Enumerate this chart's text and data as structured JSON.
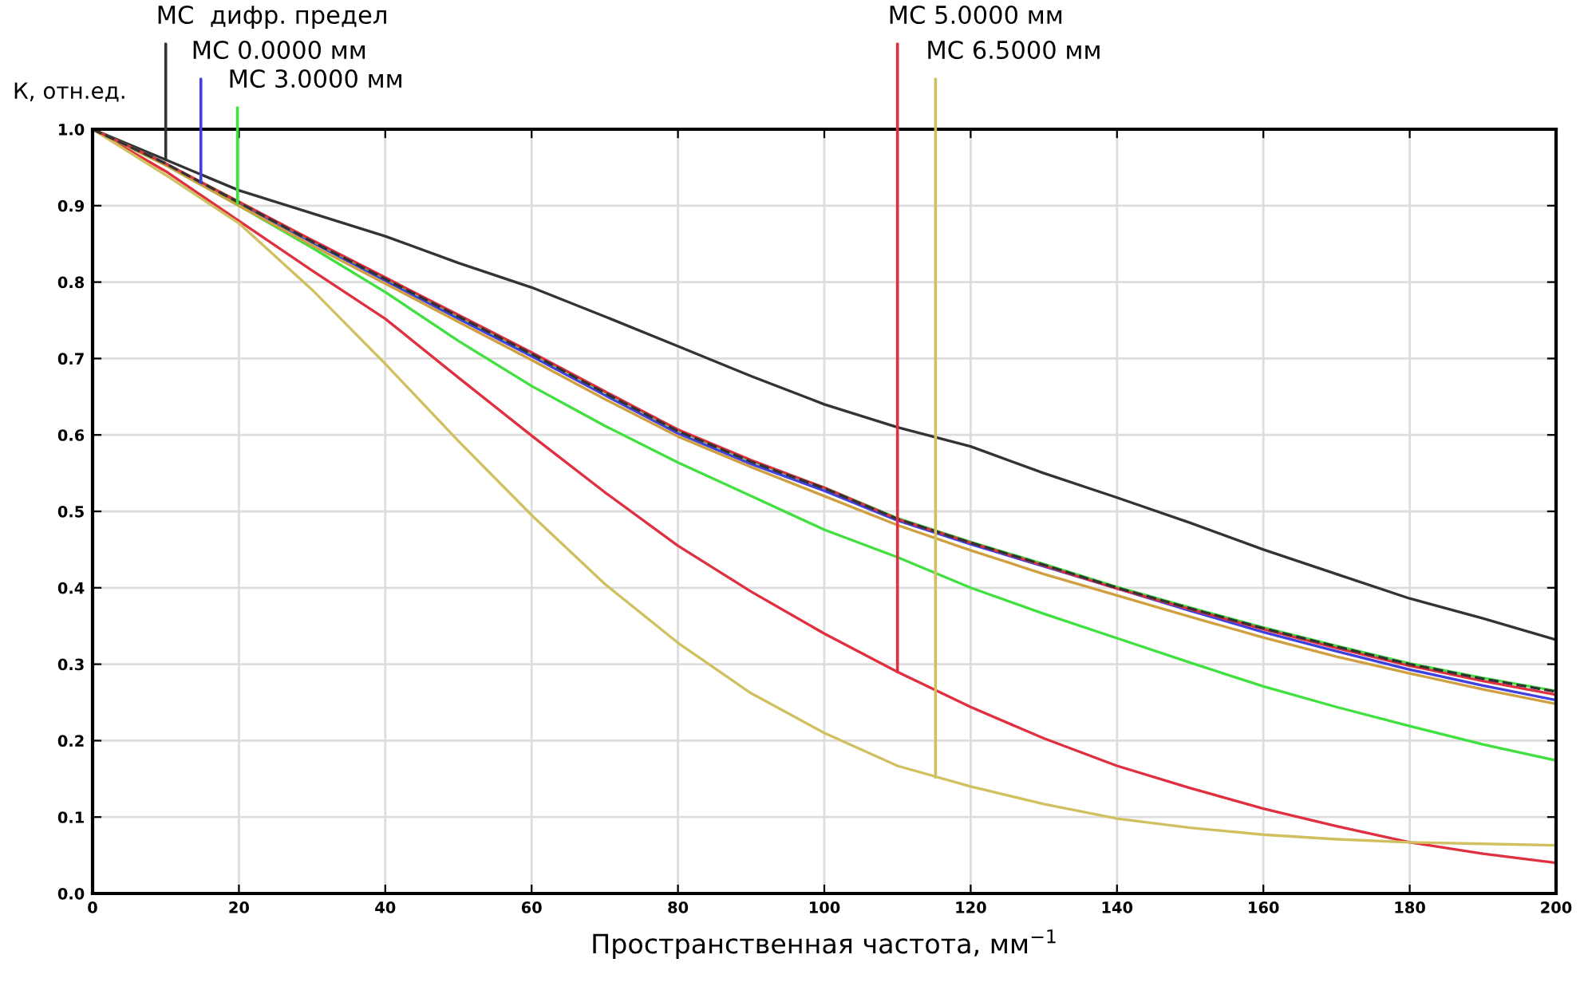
{
  "chart_data": {
    "type": "line",
    "xlabel": "Пространственная частота, мм$^{−1}$",
    "ylabel": "К, отн.ед.",
    "x": [
      0,
      10,
      20,
      30,
      40,
      50,
      60,
      70,
      80,
      90,
      100,
      110,
      120,
      130,
      140,
      150,
      160,
      170,
      180,
      190,
      200
    ],
    "xlim": [
      0,
      200
    ],
    "xticks": [
      0,
      20,
      40,
      60,
      80,
      100,
      120,
      140,
      160,
      180,
      200
    ],
    "ylim": [
      0,
      1.0
    ],
    "yticks": [
      {
        "value": 0,
        "label": "0.0"
      },
      0.1,
      0.2,
      0.3,
      0.4,
      0.5,
      0.6,
      0.7,
      0.8,
      0.9,
      {
        "value": 1.0,
        "label": "1.0"
      }
    ],
    "grid": true,
    "line_style": "solid",
    "series": [
      {
        "color": "#333333",
        "values": [
          1.0,
          0.96,
          0.92,
          0.89,
          0.86,
          0.825,
          0.793,
          0.755,
          0.716,
          0.677,
          0.64,
          0.61,
          0.585,
          0.55,
          0.518,
          0.485,
          0.45,
          0.418,
          0.386,
          0.36,
          0.332
        ]
      },
      {
        "color": "#4040e0",
        "values": [
          1.0,
          0.955,
          0.903,
          0.852,
          0.802,
          0.752,
          0.703,
          0.652,
          0.602,
          0.562,
          0.527,
          0.488,
          0.457,
          0.428,
          0.399,
          0.37,
          0.342,
          0.317,
          0.293,
          0.272,
          0.253
        ]
      },
      {
        "color": "#40e040",
        "values": [
          1.0,
          0.953,
          0.9,
          0.845,
          0.787,
          0.723,
          0.664,
          0.612,
          0.564,
          0.52,
          0.476,
          0.44,
          0.4,
          0.366,
          0.334,
          0.302,
          0.271,
          0.244,
          0.219,
          0.195,
          0.174
        ]
      },
      {
        "color": "#e03040",
        "values": [
          1.0,
          0.945,
          0.88,
          0.815,
          0.752,
          0.675,
          0.599,
          0.525,
          0.455,
          0.395,
          0.34,
          0.29,
          0.244,
          0.203,
          0.167,
          0.138,
          0.111,
          0.088,
          0.067,
          0.052,
          0.04
        ]
      },
      {
        "color": "#d0c060",
        "values": [
          1.0,
          0.94,
          0.877,
          0.79,
          0.693,
          0.592,
          0.495,
          0.405,
          0.328,
          0.262,
          0.21,
          0.167,
          0.14,
          0.117,
          0.098,
          0.086,
          0.077,
          0.071,
          0.067,
          0.065,
          0.063
        ]
      },
      {
        "color": "#d0a040",
        "values": [
          1.0,
          0.953,
          0.9,
          0.848,
          0.798,
          0.748,
          0.698,
          0.647,
          0.598,
          0.558,
          0.52,
          0.482,
          0.449,
          0.418,
          0.39,
          0.362,
          0.335,
          0.31,
          0.288,
          0.267,
          0.248
        ]
      },
      {
        "color": "#40e040",
        "values": [
          1.0,
          0.955,
          0.905,
          0.854,
          0.805,
          0.756,
          0.707,
          0.656,
          0.606,
          0.566,
          0.531,
          0.491,
          0.46,
          0.431,
          0.401,
          0.374,
          0.348,
          0.324,
          0.301,
          0.282,
          0.265
        ]
      },
      {
        "color": "#e03040",
        "values": [
          1.0,
          0.955,
          0.905,
          0.855,
          0.806,
          0.757,
          0.708,
          0.657,
          0.607,
          0.567,
          0.531,
          0.49,
          0.459,
          0.429,
          0.399,
          0.372,
          0.346,
          0.321,
          0.298,
          0.278,
          0.26
        ]
      },
      {
        "color": "#333333",
        "line_style": "dashed",
        "values": [
          1.0,
          0.955,
          0.904,
          0.853,
          0.804,
          0.755,
          0.706,
          0.655,
          0.605,
          0.565,
          0.53,
          0.49,
          0.459,
          0.43,
          0.4,
          0.373,
          0.347,
          0.323,
          0.3,
          0.281,
          0.264
        ]
      }
    ],
    "annotations": [
      {
        "text": "МС  дифр. предел",
        "x": 10,
        "y": 0.96
      },
      {
        "text": "МС 0.0000 мм",
        "x": 14.8,
        "y": 0.93
      },
      {
        "text": "МС 3.0000 мм",
        "x": 19.8,
        "y": 0.903
      },
      {
        "text": "МС 5.0000 мм",
        "x": 110,
        "y": 0.29
      },
      {
        "text": "МС 6.5000 мм",
        "x": 115.2,
        "y": 0.152
      }
    ]
  }
}
